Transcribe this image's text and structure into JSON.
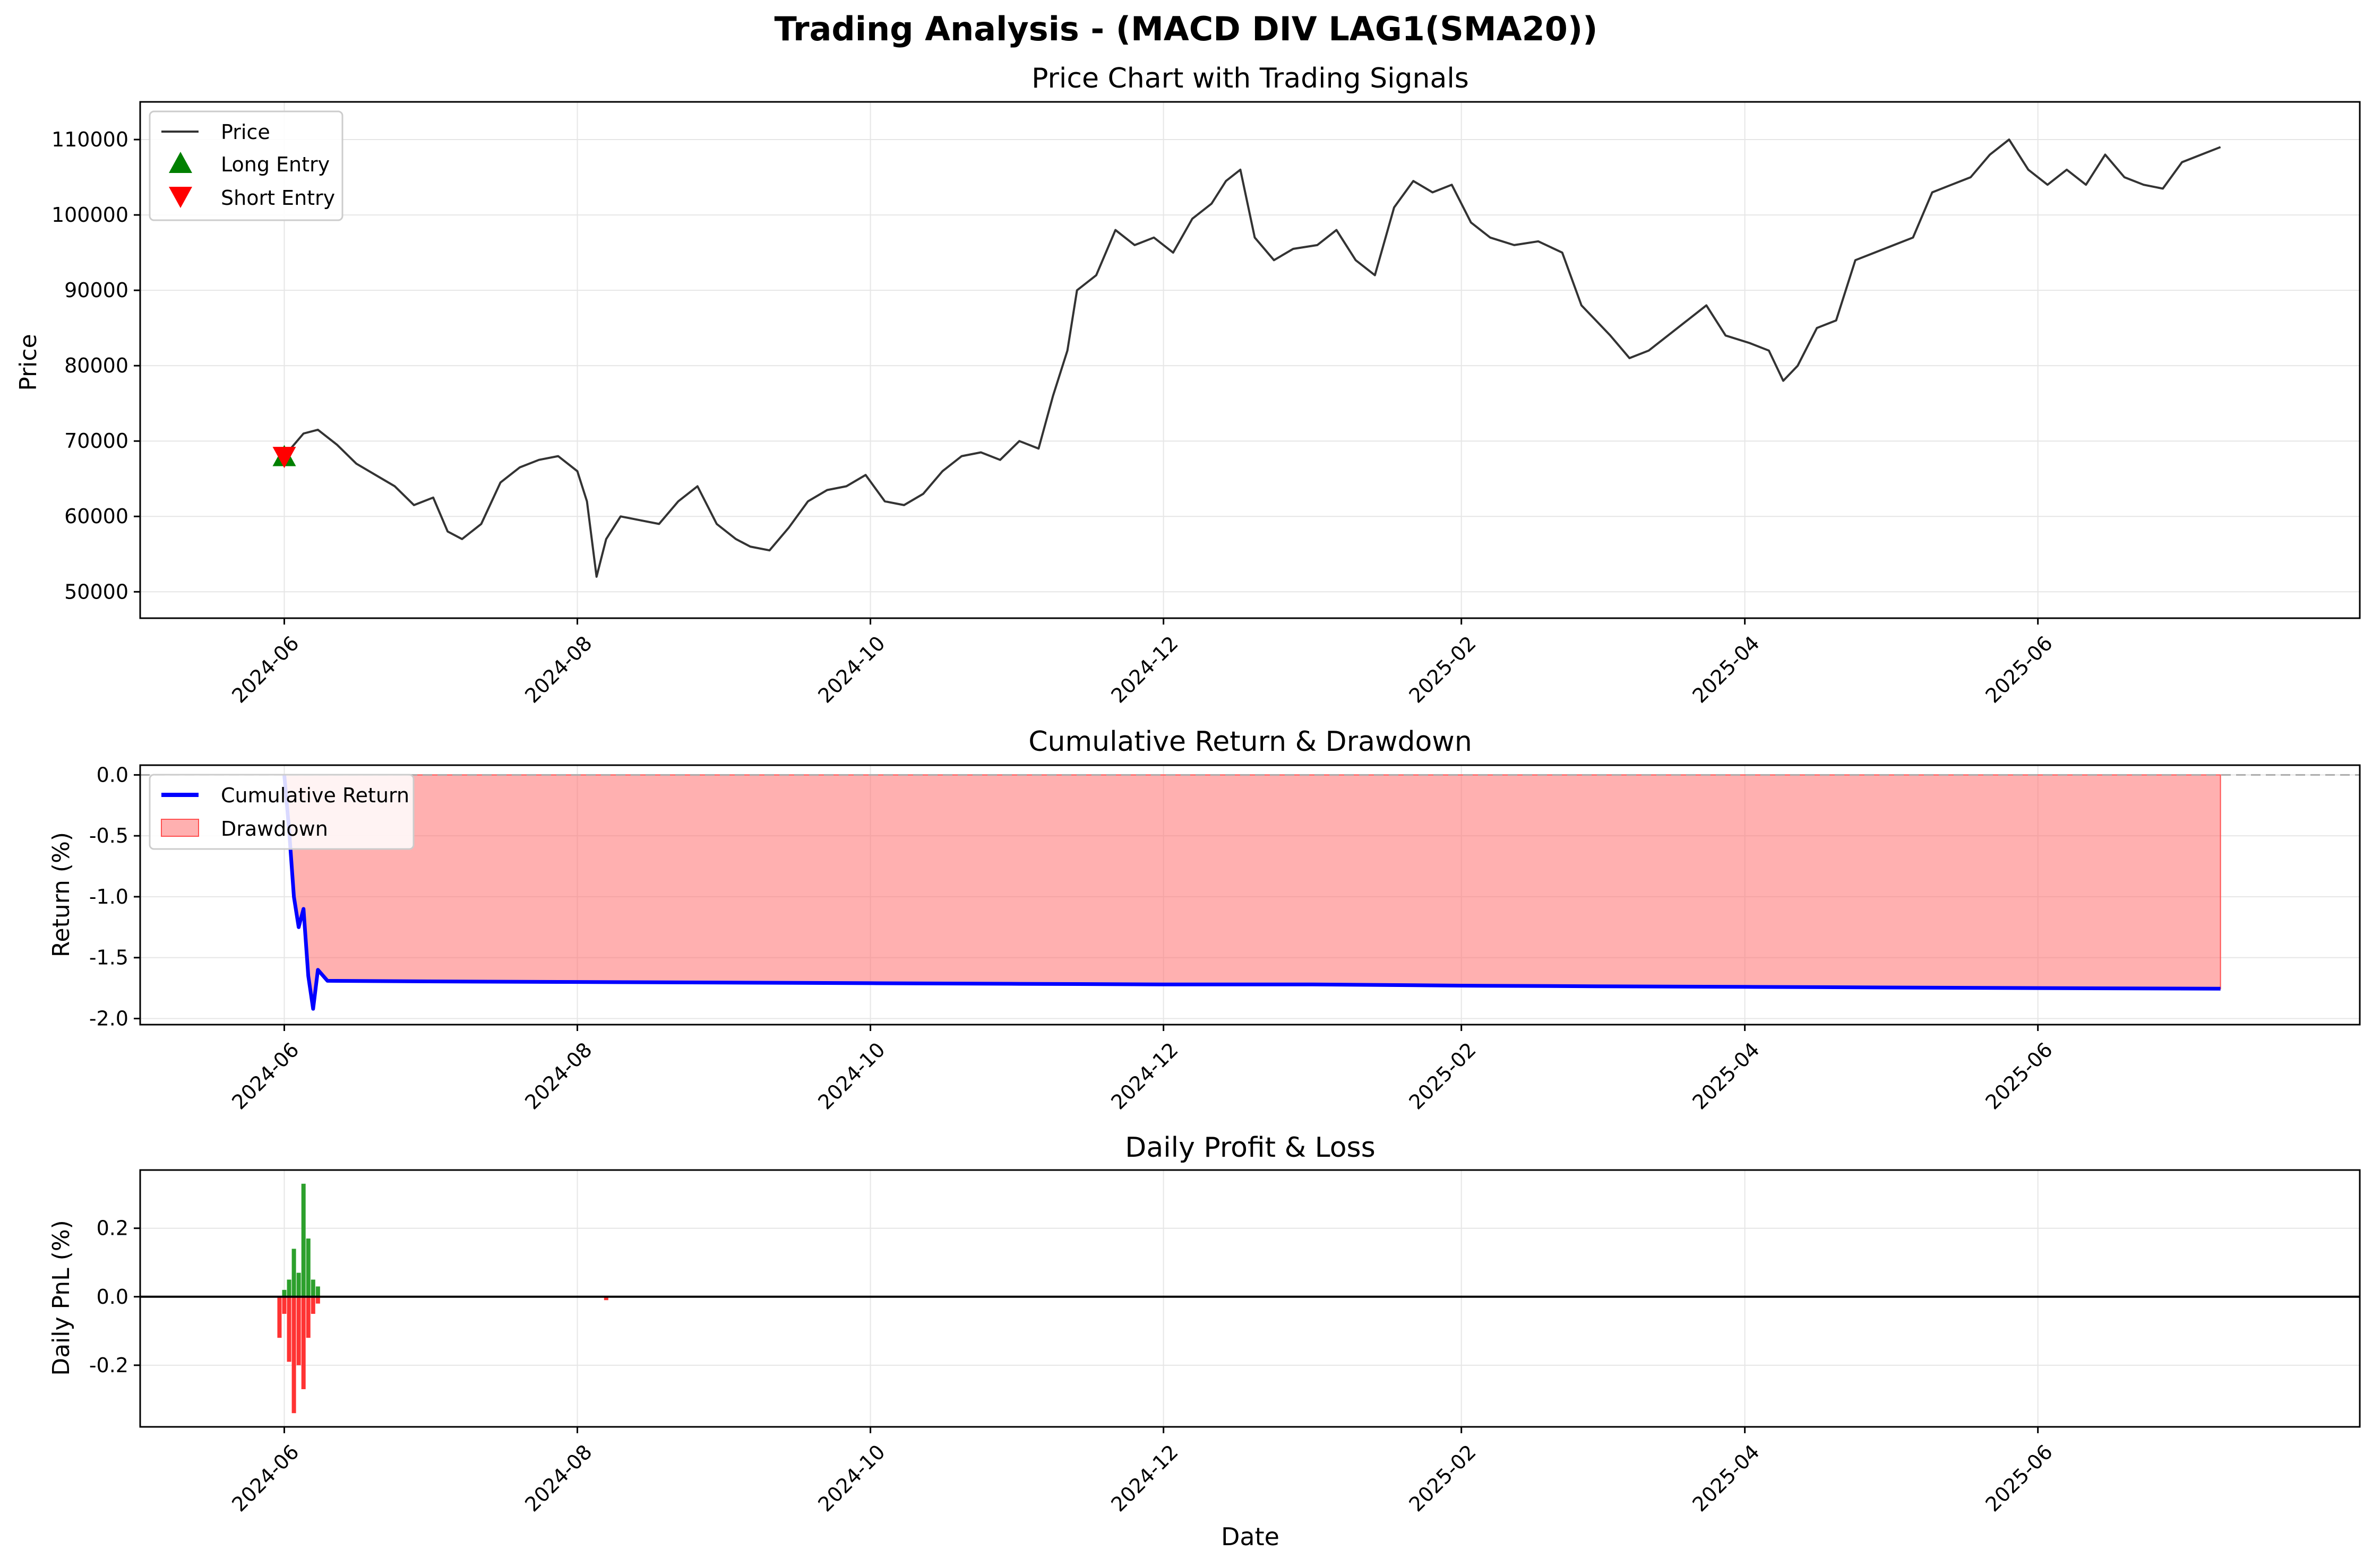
{
  "suptitle": "Trading Analysis - (MACD DIV LAG1(SMA20))",
  "colors": {
    "price": "#333333",
    "long": "#008000",
    "short": "#ff0000",
    "cum": "#0000ff",
    "drawdown": "#ff7070",
    "pnl_pos": "#2ca02c",
    "pnl_neg": "#ff3333",
    "grid": "#e6e6e6"
  },
  "chart_data": [
    {
      "type": "line",
      "title": "Price Chart with Trading Signals",
      "xlabel": "",
      "ylabel": "Price",
      "xlim": [
        "2024-05-02",
        "2025-08-07"
      ],
      "ylim": [
        46500,
        115000
      ],
      "yticks": [
        50000,
        60000,
        70000,
        80000,
        90000,
        100000,
        110000
      ],
      "xticks": [
        "2024-06",
        "2024-08",
        "2024-10",
        "2024-12",
        "2025-02",
        "2025-04",
        "2025-06"
      ],
      "grid": true,
      "legend": "top-left",
      "legend_entries": [
        "Price",
        "Long Entry",
        "Short Entry"
      ],
      "series": [
        {
          "name": "Price",
          "x": [
            "2024-06-01",
            "2024-06-05",
            "2024-06-08",
            "2024-06-12",
            "2024-06-16",
            "2024-06-20",
            "2024-06-24",
            "2024-06-28",
            "2024-07-02",
            "2024-07-05",
            "2024-07-08",
            "2024-07-12",
            "2024-07-16",
            "2024-07-20",
            "2024-07-24",
            "2024-07-28",
            "2024-08-01",
            "2024-08-03",
            "2024-08-05",
            "2024-08-07",
            "2024-08-10",
            "2024-08-14",
            "2024-08-18",
            "2024-08-22",
            "2024-08-26",
            "2024-08-30",
            "2024-09-03",
            "2024-09-06",
            "2024-09-10",
            "2024-09-14",
            "2024-09-18",
            "2024-09-22",
            "2024-09-26",
            "2024-09-30",
            "2024-10-04",
            "2024-10-08",
            "2024-10-12",
            "2024-10-16",
            "2024-10-20",
            "2024-10-24",
            "2024-10-28",
            "2024-11-01",
            "2024-11-05",
            "2024-11-08",
            "2024-11-11",
            "2024-11-13",
            "2024-11-17",
            "2024-11-21",
            "2024-11-25",
            "2024-11-29",
            "2024-12-03",
            "2024-12-07",
            "2024-12-11",
            "2024-12-14",
            "2024-12-17",
            "2024-12-20",
            "2024-12-24",
            "2024-12-28",
            "2025-01-02",
            "2025-01-06",
            "2025-01-10",
            "2025-01-14",
            "2025-01-18",
            "2025-01-22",
            "2025-01-26",
            "2025-01-30",
            "2025-02-03",
            "2025-02-07",
            "2025-02-12",
            "2025-02-17",
            "2025-02-22",
            "2025-02-26",
            "2025-03-01",
            "2025-03-04",
            "2025-03-08",
            "2025-03-12",
            "2025-03-16",
            "2025-03-20",
            "2025-03-24",
            "2025-03-28",
            "2025-04-02",
            "2025-04-06",
            "2025-04-09",
            "2025-04-12",
            "2025-04-16",
            "2025-04-20",
            "2025-04-24",
            "2025-04-28",
            "2025-05-02",
            "2025-05-06",
            "2025-05-10",
            "2025-05-14",
            "2025-05-18",
            "2025-05-22",
            "2025-05-26",
            "2025-05-30",
            "2025-06-03",
            "2025-06-07",
            "2025-06-11",
            "2025-06-15",
            "2025-06-19",
            "2025-06-23",
            "2025-06-27",
            "2025-07-01",
            "2025-07-05",
            "2025-07-09"
          ],
          "y": [
            68000,
            71000,
            71500,
            69500,
            67000,
            65500,
            64000,
            61500,
            62500,
            58000,
            57000,
            59000,
            64500,
            66500,
            67500,
            68000,
            66000,
            62000,
            52000,
            57000,
            60000,
            59500,
            59000,
            62000,
            64000,
            59000,
            57000,
            56000,
            55500,
            58500,
            62000,
            63500,
            64000,
            65500,
            62000,
            61500,
            63000,
            66000,
            68000,
            68500,
            67500,
            70000,
            69000,
            76000,
            82000,
            90000,
            92000,
            98000,
            96000,
            97000,
            95000,
            99500,
            101500,
            104500,
            106000,
            97000,
            94000,
            95500,
            96000,
            98000,
            94000,
            92000,
            101000,
            104500,
            103000,
            104000,
            99000,
            97000,
            96000,
            96500,
            95000,
            88000,
            86000,
            84000,
            81000,
            82000,
            84000,
            86000,
            88000,
            84000,
            83000,
            82000,
            78000,
            80000,
            85000,
            86000,
            94000,
            95000,
            96000,
            97000,
            103000,
            104000,
            105000,
            108000,
            110000,
            106000,
            104000,
            106000,
            104000,
            108000,
            105000,
            104000,
            103500,
            107000,
            108000,
            109000
          ]
        }
      ],
      "markers": [
        {
          "name": "Long Entry",
          "x": "2024-06-01",
          "y": 67800,
          "shape": "triangle-up"
        },
        {
          "name": "Short Entry",
          "x": "2024-06-01",
          "y": 68100,
          "shape": "triangle-down"
        }
      ]
    },
    {
      "type": "area",
      "title": "Cumulative Return & Drawdown",
      "xlabel": "",
      "ylabel": "Return (%)",
      "xlim": [
        "2024-05-02",
        "2025-08-07"
      ],
      "ylim": [
        -2.05,
        0.08
      ],
      "yticks": [
        0.0,
        -0.5,
        -1.0,
        -1.5,
        -2.0
      ],
      "xticks": [
        "2024-06",
        "2024-08",
        "2024-10",
        "2024-12",
        "2025-02",
        "2025-04",
        "2025-06"
      ],
      "grid": true,
      "legend": "top-left",
      "legend_entries": [
        "Cumulative Return",
        "Drawdown"
      ],
      "baseline": 0.0,
      "series": [
        {
          "name": "Cumulative Return",
          "x": [
            "2024-06-01",
            "2024-06-02",
            "2024-06-03",
            "2024-06-04",
            "2024-06-05",
            "2024-06-06",
            "2024-06-07",
            "2024-06-08",
            "2024-06-10",
            "2024-07-01",
            "2024-08-01",
            "2024-09-01",
            "2024-10-01",
            "2024-11-01",
            "2024-12-01",
            "2025-01-01",
            "2025-02-01",
            "2025-03-01",
            "2025-04-01",
            "2025-05-01",
            "2025-06-01",
            "2025-07-09"
          ],
          "y": [
            0.0,
            -0.45,
            -1.0,
            -1.25,
            -1.1,
            -1.65,
            -1.92,
            -1.6,
            -1.69,
            -1.695,
            -1.7,
            -1.705,
            -1.71,
            -1.715,
            -1.72,
            -1.72,
            -1.73,
            -1.735,
            -1.74,
            -1.745,
            -1.75,
            -1.755
          ]
        },
        {
          "name": "Drawdown",
          "x": [
            "2024-06-01",
            "2024-06-02",
            "2024-06-03",
            "2024-06-04",
            "2024-06-05",
            "2024-06-06",
            "2024-06-07",
            "2024-06-08",
            "2024-06-10",
            "2024-07-01",
            "2024-08-01",
            "2024-09-01",
            "2024-10-01",
            "2024-11-01",
            "2024-12-01",
            "2025-01-01",
            "2025-02-01",
            "2025-03-01",
            "2025-04-01",
            "2025-05-01",
            "2025-06-01",
            "2025-07-09"
          ],
          "y": [
            0.0,
            -0.45,
            -1.0,
            -1.25,
            -1.1,
            -1.65,
            -1.92,
            -1.6,
            -1.69,
            -1.695,
            -1.7,
            -1.705,
            -1.71,
            -1.715,
            -1.72,
            -1.72,
            -1.73,
            -1.735,
            -1.74,
            -1.745,
            -1.75,
            -1.755
          ]
        }
      ]
    },
    {
      "type": "bar",
      "title": "Daily Profit & Loss",
      "xlabel": "Date",
      "ylabel": "Daily PnL (%)",
      "xlim": [
        "2024-05-02",
        "2025-08-07"
      ],
      "ylim": [
        -0.38,
        0.37
      ],
      "yticks": [
        0.2,
        0.0,
        -0.2
      ],
      "xticks": [
        "2024-06",
        "2024-08",
        "2024-10",
        "2024-12",
        "2025-02",
        "2025-04",
        "2025-06"
      ],
      "grid": true,
      "baseline": 0.0,
      "bars": [
        {
          "x": "2024-05-31",
          "y": -0.12
        },
        {
          "x": "2024-06-01",
          "y": -0.05
        },
        {
          "x": "2024-06-01",
          "y": 0.02
        },
        {
          "x": "2024-06-02",
          "y": -0.19
        },
        {
          "x": "2024-06-02",
          "y": 0.05
        },
        {
          "x": "2024-06-03",
          "y": -0.34
        },
        {
          "x": "2024-06-03",
          "y": 0.14
        },
        {
          "x": "2024-06-04",
          "y": -0.2
        },
        {
          "x": "2024-06-04",
          "y": 0.07
        },
        {
          "x": "2024-06-05",
          "y": -0.27
        },
        {
          "x": "2024-06-05",
          "y": 0.33
        },
        {
          "x": "2024-06-06",
          "y": -0.12
        },
        {
          "x": "2024-06-06",
          "y": 0.17
        },
        {
          "x": "2024-06-07",
          "y": -0.05
        },
        {
          "x": "2024-06-07",
          "y": 0.05
        },
        {
          "x": "2024-06-08",
          "y": -0.02
        },
        {
          "x": "2024-06-08",
          "y": 0.03
        },
        {
          "x": "2024-08-07",
          "y": -0.01
        }
      ]
    }
  ]
}
